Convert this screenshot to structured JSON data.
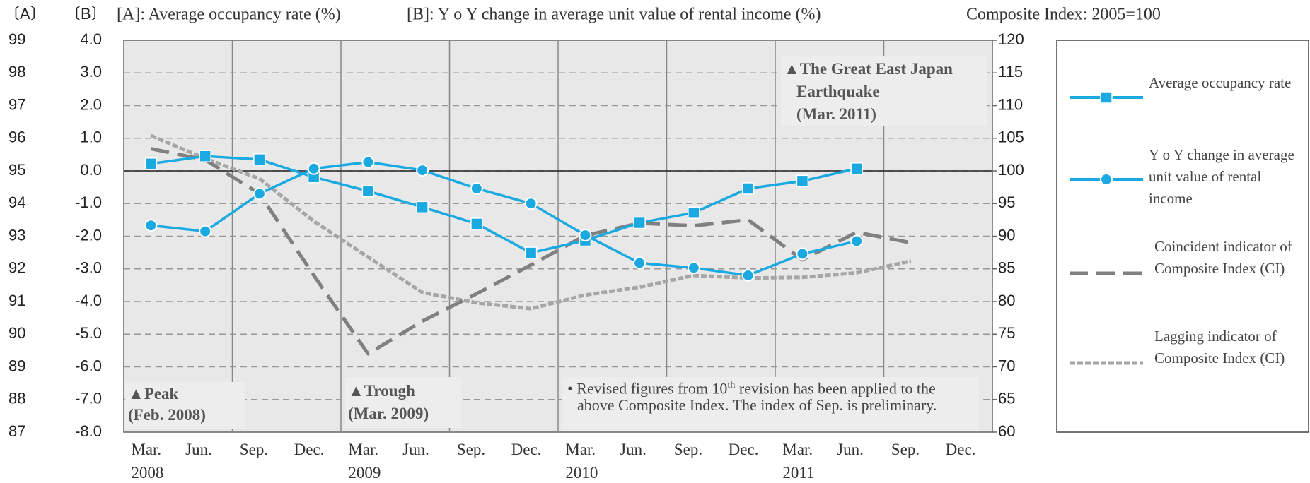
{
  "chart_data": {
    "type": "line",
    "axis_headers": [
      "〔A〕",
      "〔B〕"
    ],
    "headers": [
      "[A]: Average occupancy rate (%)",
      "[B]: Y o Y change in average unit value of rental income (%)",
      "Composite Index: 2005=100"
    ],
    "categories": [
      "Mar. 2008",
      "Jun.",
      "Sep.",
      "Dec.",
      "Mar. 2009",
      "Jun.",
      "Sep.",
      "Dec.",
      "Mar. 2010",
      "Jun.",
      "Sep.",
      "Dec.",
      "Mar. 2011",
      "Jun.",
      "Sep.",
      "Dec."
    ],
    "ylim": [
      87,
      99
    ],
    "yticks": [
      87,
      88,
      89,
      90,
      91,
      92,
      93,
      94,
      95,
      96,
      97,
      98,
      99
    ],
    "y2lim": [
      -8,
      4
    ],
    "y2ticks": [
      {
        "value": -8,
        "label": "-8.0"
      },
      {
        "value": -7,
        "label": "-7.0"
      },
      {
        "value": -6,
        "label": "-6.0"
      },
      {
        "value": -5,
        "label": "-5.0"
      },
      {
        "value": -4,
        "label": "-4.0"
      },
      {
        "value": -3,
        "label": "-3.0"
      },
      {
        "value": -2,
        "label": "-2.0"
      },
      {
        "value": -1,
        "label": "-1.0"
      },
      {
        "value": 0,
        "label": "0.0"
      },
      {
        "value": 1,
        "label": "1.0"
      },
      {
        "value": 2,
        "label": "2.0"
      },
      {
        "value": 3,
        "label": "3.0"
      },
      {
        "value": 4,
        "label": "4.0"
      }
    ],
    "y3lim": [
      60,
      120
    ],
    "y3ticks": [
      60,
      65,
      70,
      75,
      80,
      85,
      90,
      95,
      100,
      105,
      110,
      115,
      120
    ],
    "grid": true,
    "series": [
      {
        "name": "Average occupancy rate",
        "color": "#1aa9e0",
        "marker": "square",
        "dash": "solid",
        "axis": "y",
        "values": [
          95.22,
          95.45,
          95.35,
          94.81,
          94.38,
          93.89,
          93.38,
          92.49,
          92.87,
          93.41,
          93.72,
          94.46,
          94.69,
          95.07,
          null,
          null
        ]
      },
      {
        "name": "Y o Y change in average unit value of rental income",
        "color": "#1aa9e0",
        "marker": "circle",
        "dash": "solid",
        "axis": "y2",
        "values": [
          -1.67,
          -1.85,
          -0.7,
          0.07,
          0.27,
          0.02,
          -0.54,
          -1.0,
          -1.97,
          -2.82,
          -2.97,
          -3.2,
          -2.54,
          -2.15,
          null,
          null
        ]
      },
      {
        "name": "Coincident indicator of Composite Index (CI)",
        "color": "#808080",
        "marker": "none",
        "dash": "long",
        "axis": "y3",
        "values": [
          103.4,
          101.7,
          96.5,
          84.0,
          72.0,
          77.0,
          81.2,
          85.6,
          90.1,
          92.0,
          91.6,
          92.5,
          86.4,
          90.6,
          89.0,
          null
        ]
      },
      {
        "name": "Lagging indicator of Composite Index (CI)",
        "color": "#a6a6a6",
        "marker": "none",
        "dash": "short",
        "axis": "y3",
        "values": [
          105.4,
          101.9,
          98.8,
          92.3,
          86.8,
          81.4,
          79.8,
          78.9,
          81.0,
          82.2,
          84.0,
          83.6,
          83.7,
          84.4,
          86.2,
          null
        ]
      }
    ],
    "annotations": [
      {
        "lines": [
          "▲Peak",
          "(Feb. 2008)"
        ]
      },
      {
        "lines": [
          "▲Trough",
          "(Mar. 2009)"
        ]
      },
      {
        "lines": [
          "▲The Great East Japan",
          "Earthquake",
          "(Mar. 2011)"
        ]
      }
    ],
    "note": {
      "before": "• Revised figures from 10",
      "sup": "th",
      "after": " revision has been applied to the above Composite Index. The index of Sep. is preliminary."
    }
  }
}
